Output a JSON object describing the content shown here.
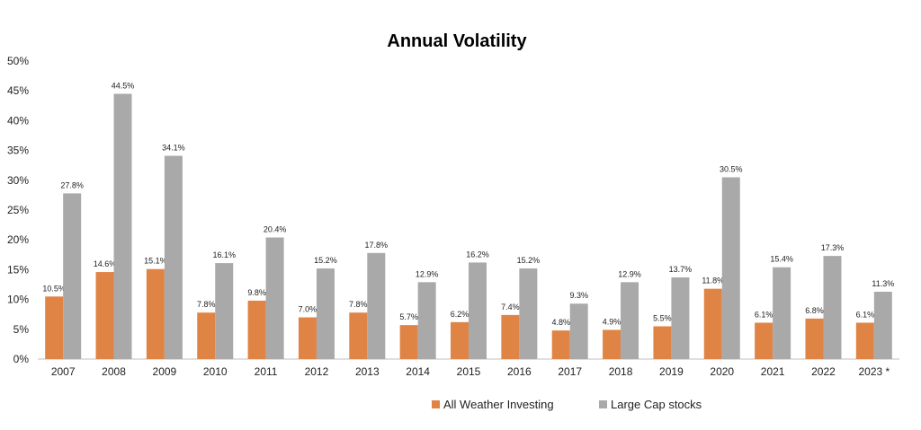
{
  "chart_data": {
    "type": "bar",
    "title": "Annual Volatility",
    "xlabel": "",
    "ylabel": "",
    "ylim": [
      0,
      50
    ],
    "yticks": [
      "0%",
      "5%",
      "10%",
      "15%",
      "20%",
      "25%",
      "30%",
      "35%",
      "40%",
      "45%",
      "50%"
    ],
    "categories": [
      "2007",
      "2008",
      "2009",
      "2010",
      "2011",
      "2012",
      "2013",
      "2014",
      "2015",
      "2016",
      "2017",
      "2018",
      "2019",
      "2020",
      "2021",
      "2022",
      "2023 *"
    ],
    "series": [
      {
        "name": "All Weather Investing",
        "color": "#E08446",
        "values": [
          10.5,
          14.6,
          15.1,
          7.8,
          9.8,
          7.0,
          7.8,
          5.7,
          6.2,
          7.4,
          4.8,
          4.9,
          5.5,
          11.8,
          6.1,
          6.8,
          6.1
        ],
        "labels": [
          "10.5%",
          "14.6%",
          "15.1%",
          "7.8%",
          "9.8%",
          "7.0%",
          "7.8%",
          "5.7%",
          "6.2%",
          "7.4%",
          "4.8%",
          "4.9%",
          "5.5%",
          "11.8%",
          "6.1%",
          "6.8%",
          "6.1%"
        ]
      },
      {
        "name": "Large Cap stocks",
        "color": "#A9A9A9",
        "values": [
          27.8,
          44.5,
          34.1,
          16.1,
          20.4,
          15.2,
          17.8,
          12.9,
          16.2,
          15.2,
          9.3,
          12.9,
          13.7,
          30.5,
          15.4,
          17.3,
          11.3
        ],
        "labels": [
          "27.8%",
          "44.5%",
          "34.1%",
          "16.1%",
          "20.4%",
          "15.2%",
          "17.8%",
          "12.9%",
          "16.2%",
          "15.2%",
          "9.3%",
          "12.9%",
          "13.7%",
          "30.5%",
          "15.4%",
          "17.3%",
          "11.3%"
        ]
      }
    ],
    "legend_position": "bottom",
    "grid": false
  }
}
